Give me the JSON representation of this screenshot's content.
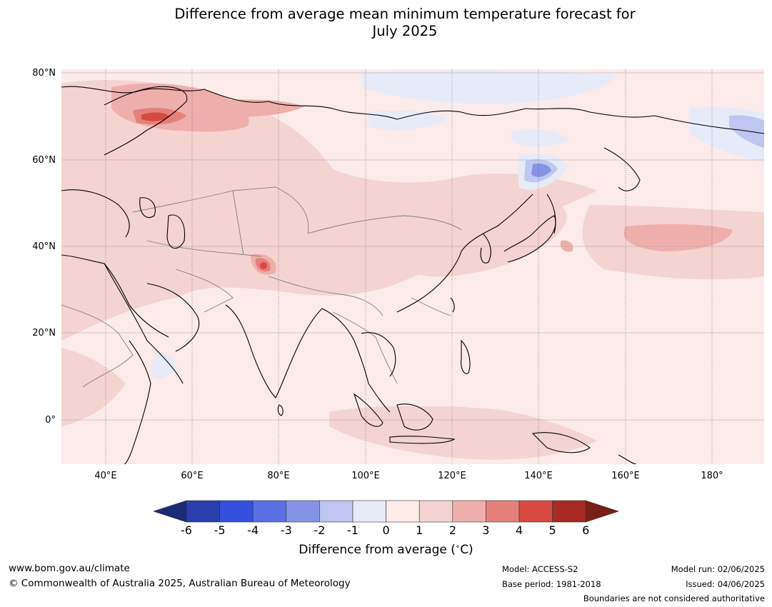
{
  "header": {
    "title_line1": "Difference from average mean minimum temperature forecast for",
    "title_line2": "July 2025"
  },
  "map": {
    "lat_labels": [
      "80°N",
      "60°N",
      "40°N",
      "20°N",
      "0°"
    ],
    "lon_labels": [
      "40°E",
      "60°E",
      "80°E",
      "100°E",
      "120°E",
      "140°E",
      "160°E",
      "180°"
    ],
    "colors": {
      "ocean_background": "#fbebea",
      "warm_1_2": "#f4d3d1",
      "warm_2_3": "#eeafab",
      "warm_3_4": "#e5807b",
      "warm_4_5": "#d84a41",
      "cool_0_-1": "#e7ebf8",
      "cool_-1_-2": "#bfc6f1",
      "cool_-2_-3": "#8493e5"
    }
  },
  "colorbar": {
    "ticks": [
      "-6",
      "-5",
      "-4",
      "-3",
      "-2",
      "-1",
      "0",
      "1",
      "2",
      "3",
      "4",
      "5",
      "6"
    ],
    "colors": [
      "#1b2a75",
      "#2a3ead",
      "#3450df",
      "#5b70e3",
      "#8493e5",
      "#bfc6f1",
      "#e7ebf8",
      "#fdecea",
      "#f4d3d1",
      "#eeafab",
      "#e5807b",
      "#d84a41",
      "#a82a22",
      "#7a1e18"
    ],
    "label": "Difference from average (",
    "label_unit": "C)"
  },
  "footer": {
    "website": "www.bom.gov.au/climate",
    "copyright": "© Commonwealth of Australia 2025, Australian Bureau of Meteorology",
    "model": "Model: ACCESS-S2",
    "base_period": "Base period: 1981-2018",
    "model_run": "Model run: 02/06/2025",
    "issued": "Issued: 04/06/2025",
    "disclaimer": "Boundaries are not considered authoritative"
  }
}
